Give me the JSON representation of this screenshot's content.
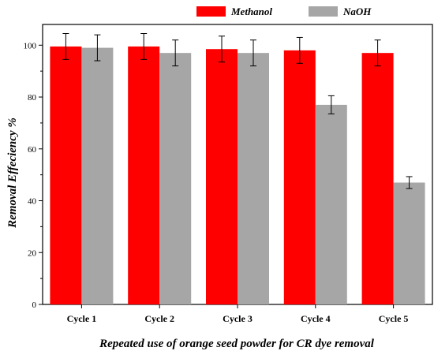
{
  "chart_data": {
    "type": "bar",
    "title": "",
    "xlabel": "Repeated use of orange seed powder for CR dye removal",
    "ylabel": "Removal Effeciency %",
    "categories": [
      "Cycle 1",
      "Cycle 2",
      "Cycle 3",
      "Cycle 4",
      "Cycle 5"
    ],
    "series": [
      {
        "name": "Methanol",
        "color": "#ff0000",
        "values": [
          99.5,
          99.5,
          98.5,
          98,
          97
        ],
        "errors": [
          5,
          5,
          5,
          5,
          5
        ]
      },
      {
        "name": "NaOH",
        "color": "#a6a6a6",
        "values": [
          99,
          97,
          97,
          77,
          47
        ],
        "errors": [
          5,
          5,
          5,
          3.5,
          2.3
        ]
      }
    ],
    "yticks": [
      0,
      20,
      40,
      60,
      80,
      100
    ],
    "ylim": [
      0,
      108
    ],
    "legend_position": "top"
  }
}
